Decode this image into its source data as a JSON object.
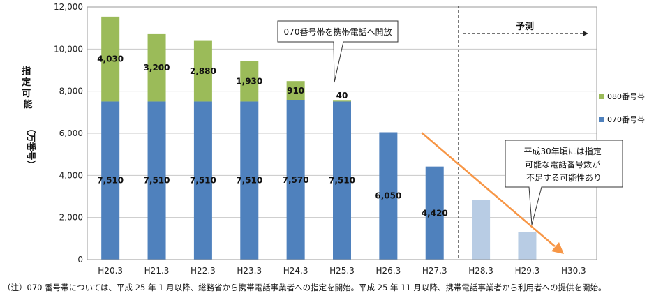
{
  "chart_data": {
    "type": "bar",
    "stacked": true,
    "categories": [
      "H20.3",
      "H21.3",
      "H22.3",
      "H23.3",
      "H24.3",
      "H25.3",
      "H26.3",
      "H27.3",
      "H28.3",
      "H29.3",
      "H30.3"
    ],
    "series": [
      {
        "name": "070番号帯",
        "color": "#4f81bd",
        "values": [
          7510,
          7510,
          7510,
          7510,
          7570,
          7510,
          6050,
          4420,
          2850,
          1300,
          null
        ],
        "labels": [
          "7,510",
          "7,510",
          "7,510",
          "7,510",
          "7,570",
          "7,510",
          "6,050",
          "4,420",
          "",
          "",
          ""
        ]
      },
      {
        "name": "080番号帯",
        "color": "#9bbb59",
        "values": [
          4030,
          3200,
          2880,
          1930,
          910,
          40,
          0,
          0,
          0,
          0,
          null
        ],
        "labels": [
          "4,030",
          "3,200",
          "2,880",
          "1,930",
          "910",
          "40",
          "",
          "",
          "",
          "",
          ""
        ]
      }
    ],
    "forecast_color": "#b8cce4",
    "forecast_from_index": 8,
    "ylim": [
      0,
      12000
    ],
    "yticks": [
      0,
      2000,
      4000,
      6000,
      8000,
      10000,
      12000
    ],
    "ytick_labels": [
      "0",
      "2,000",
      "4,000",
      "6,000",
      "8,000",
      "10,000",
      "12,000"
    ],
    "ylabel": "指定可能数（万番号）",
    "grid": true,
    "legend_position": "right",
    "forecast_label": "予測",
    "annotations": [
      {
        "text": "070番号帯を携帯電話へ開放"
      },
      {
        "text_lines": [
          "平成30年頃には指定",
          "可能な電話番号数が",
          "不足する可能性あり"
        ]
      }
    ]
  },
  "note": "（注）070 番号帯については、平成 25 年 1 月以降、総務省から携帯電話事業者への指定を開始。平成 25 年 11 月以降、携帯電話事業者から利用者への提供を開始。"
}
